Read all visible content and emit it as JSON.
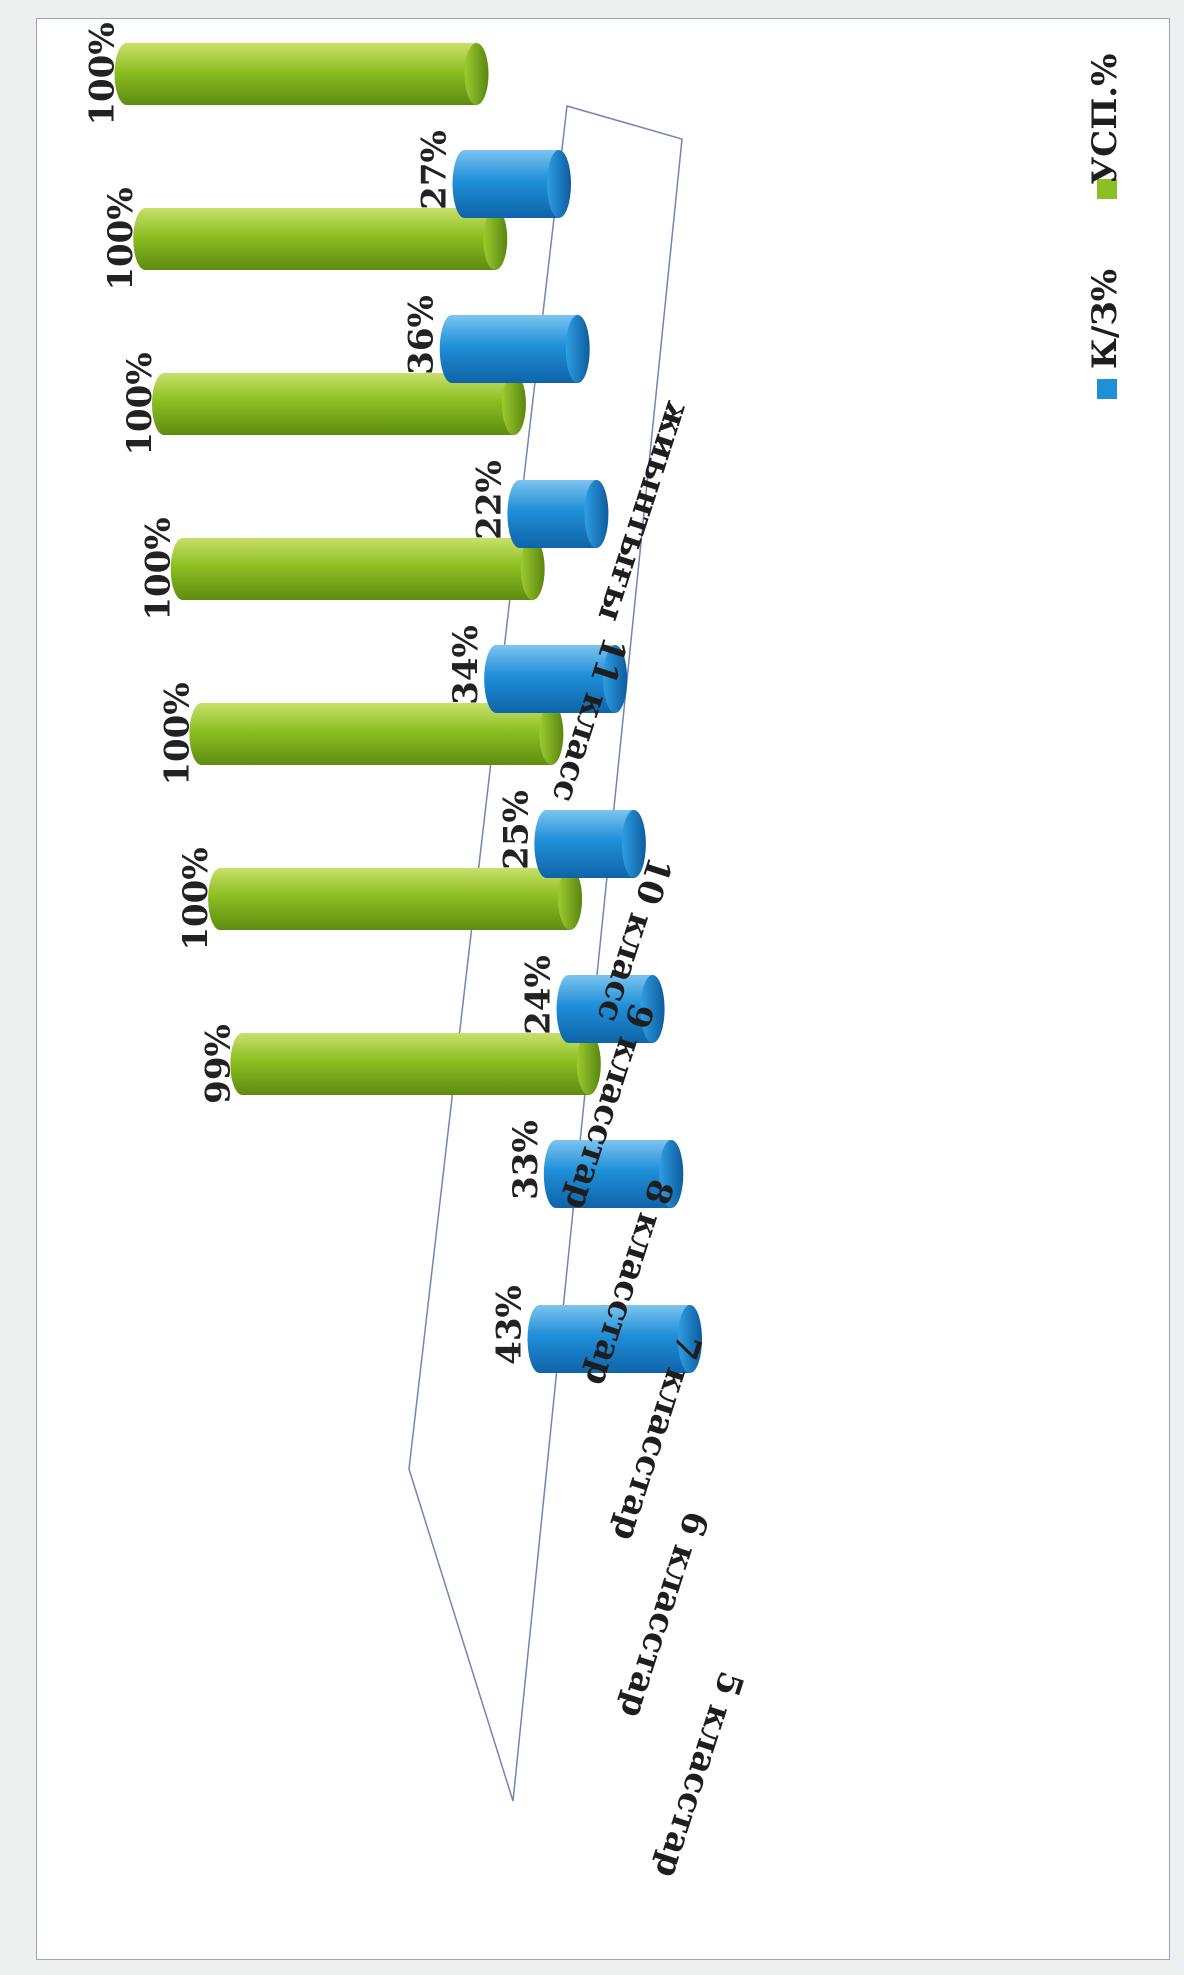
{
  "chart_data": {
    "type": "bar",
    "orientation": "horizontal",
    "rotated": true,
    "title": "",
    "xlabel": "",
    "ylabel": "",
    "categories": [
      "5 класстар",
      "6 класстар",
      "7 класстар",
      "8 класстар",
      "9 класстар",
      "10 класс",
      "11 класс",
      "жиынтығы"
    ],
    "series": [
      {
        "name": "К/З%",
        "color": "#1f8fd8",
        "values": [
          43,
          33,
          24,
          25,
          34,
          22,
          36,
          27
        ],
        "labels": [
          "43%",
          "33%",
          "24%",
          "25%",
          "34%",
          "22%",
          "36%",
          "27%"
        ]
      },
      {
        "name": "УСП.%",
        "color": "#8dbf22",
        "values": [
          0,
          99,
          100,
          100,
          100,
          100,
          100,
          100
        ],
        "labels": [
          "",
          "99%",
          "100%",
          "100%",
          "100%",
          "100%",
          "100%",
          "100%"
        ]
      }
    ],
    "ylim": [
      0,
      100
    ],
    "legend_position": "right",
    "grid": false
  }
}
